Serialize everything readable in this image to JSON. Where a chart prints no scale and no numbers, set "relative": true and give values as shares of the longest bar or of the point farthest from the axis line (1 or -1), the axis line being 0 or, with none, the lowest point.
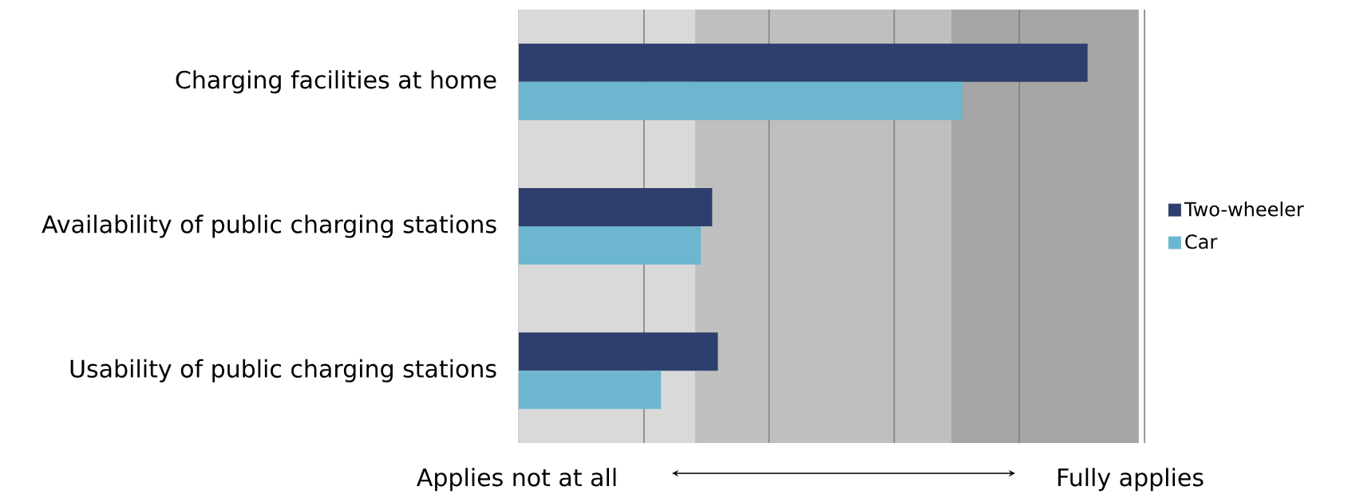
{
  "chart_data": {
    "type": "bar",
    "orientation": "horizontal",
    "relative": true,
    "categories": [
      "Charging facilities at home",
      "Availability of public charging stations",
      "Usability of public charging stations"
    ],
    "series": [
      {
        "name": "Two-wheeler",
        "color": "#2e3f6e",
        "values": [
          1.0,
          0.34,
          0.35
        ]
      },
      {
        "name": "Car",
        "color": "#6db6cf",
        "values": [
          0.78,
          0.32,
          0.25
        ]
      }
    ],
    "bands": [
      {
        "axis": "x",
        "from": 0,
        "to": 0.31,
        "color": "#d9d9d9"
      },
      {
        "axis": "x",
        "from": 0.31,
        "to": 0.76,
        "color": "#bfbfbf"
      },
      {
        "axis": "x",
        "from": 0.76,
        "to": 1.09,
        "color": "#a6a6a6"
      }
    ],
    "ref_lines": [
      {
        "axis": "x",
        "value": 0.22,
        "color": "#808080"
      },
      {
        "axis": "x",
        "value": 0.44,
        "color": "#808080"
      },
      {
        "axis": "x",
        "value": 0.66,
        "color": "#808080"
      },
      {
        "axis": "x",
        "value": 0.88,
        "color": "#808080"
      },
      {
        "axis": "x",
        "value": 1.1,
        "color": "#808080"
      }
    ],
    "annotations": [
      "Applies not at all",
      "Fully applies"
    ],
    "legend": "right"
  }
}
